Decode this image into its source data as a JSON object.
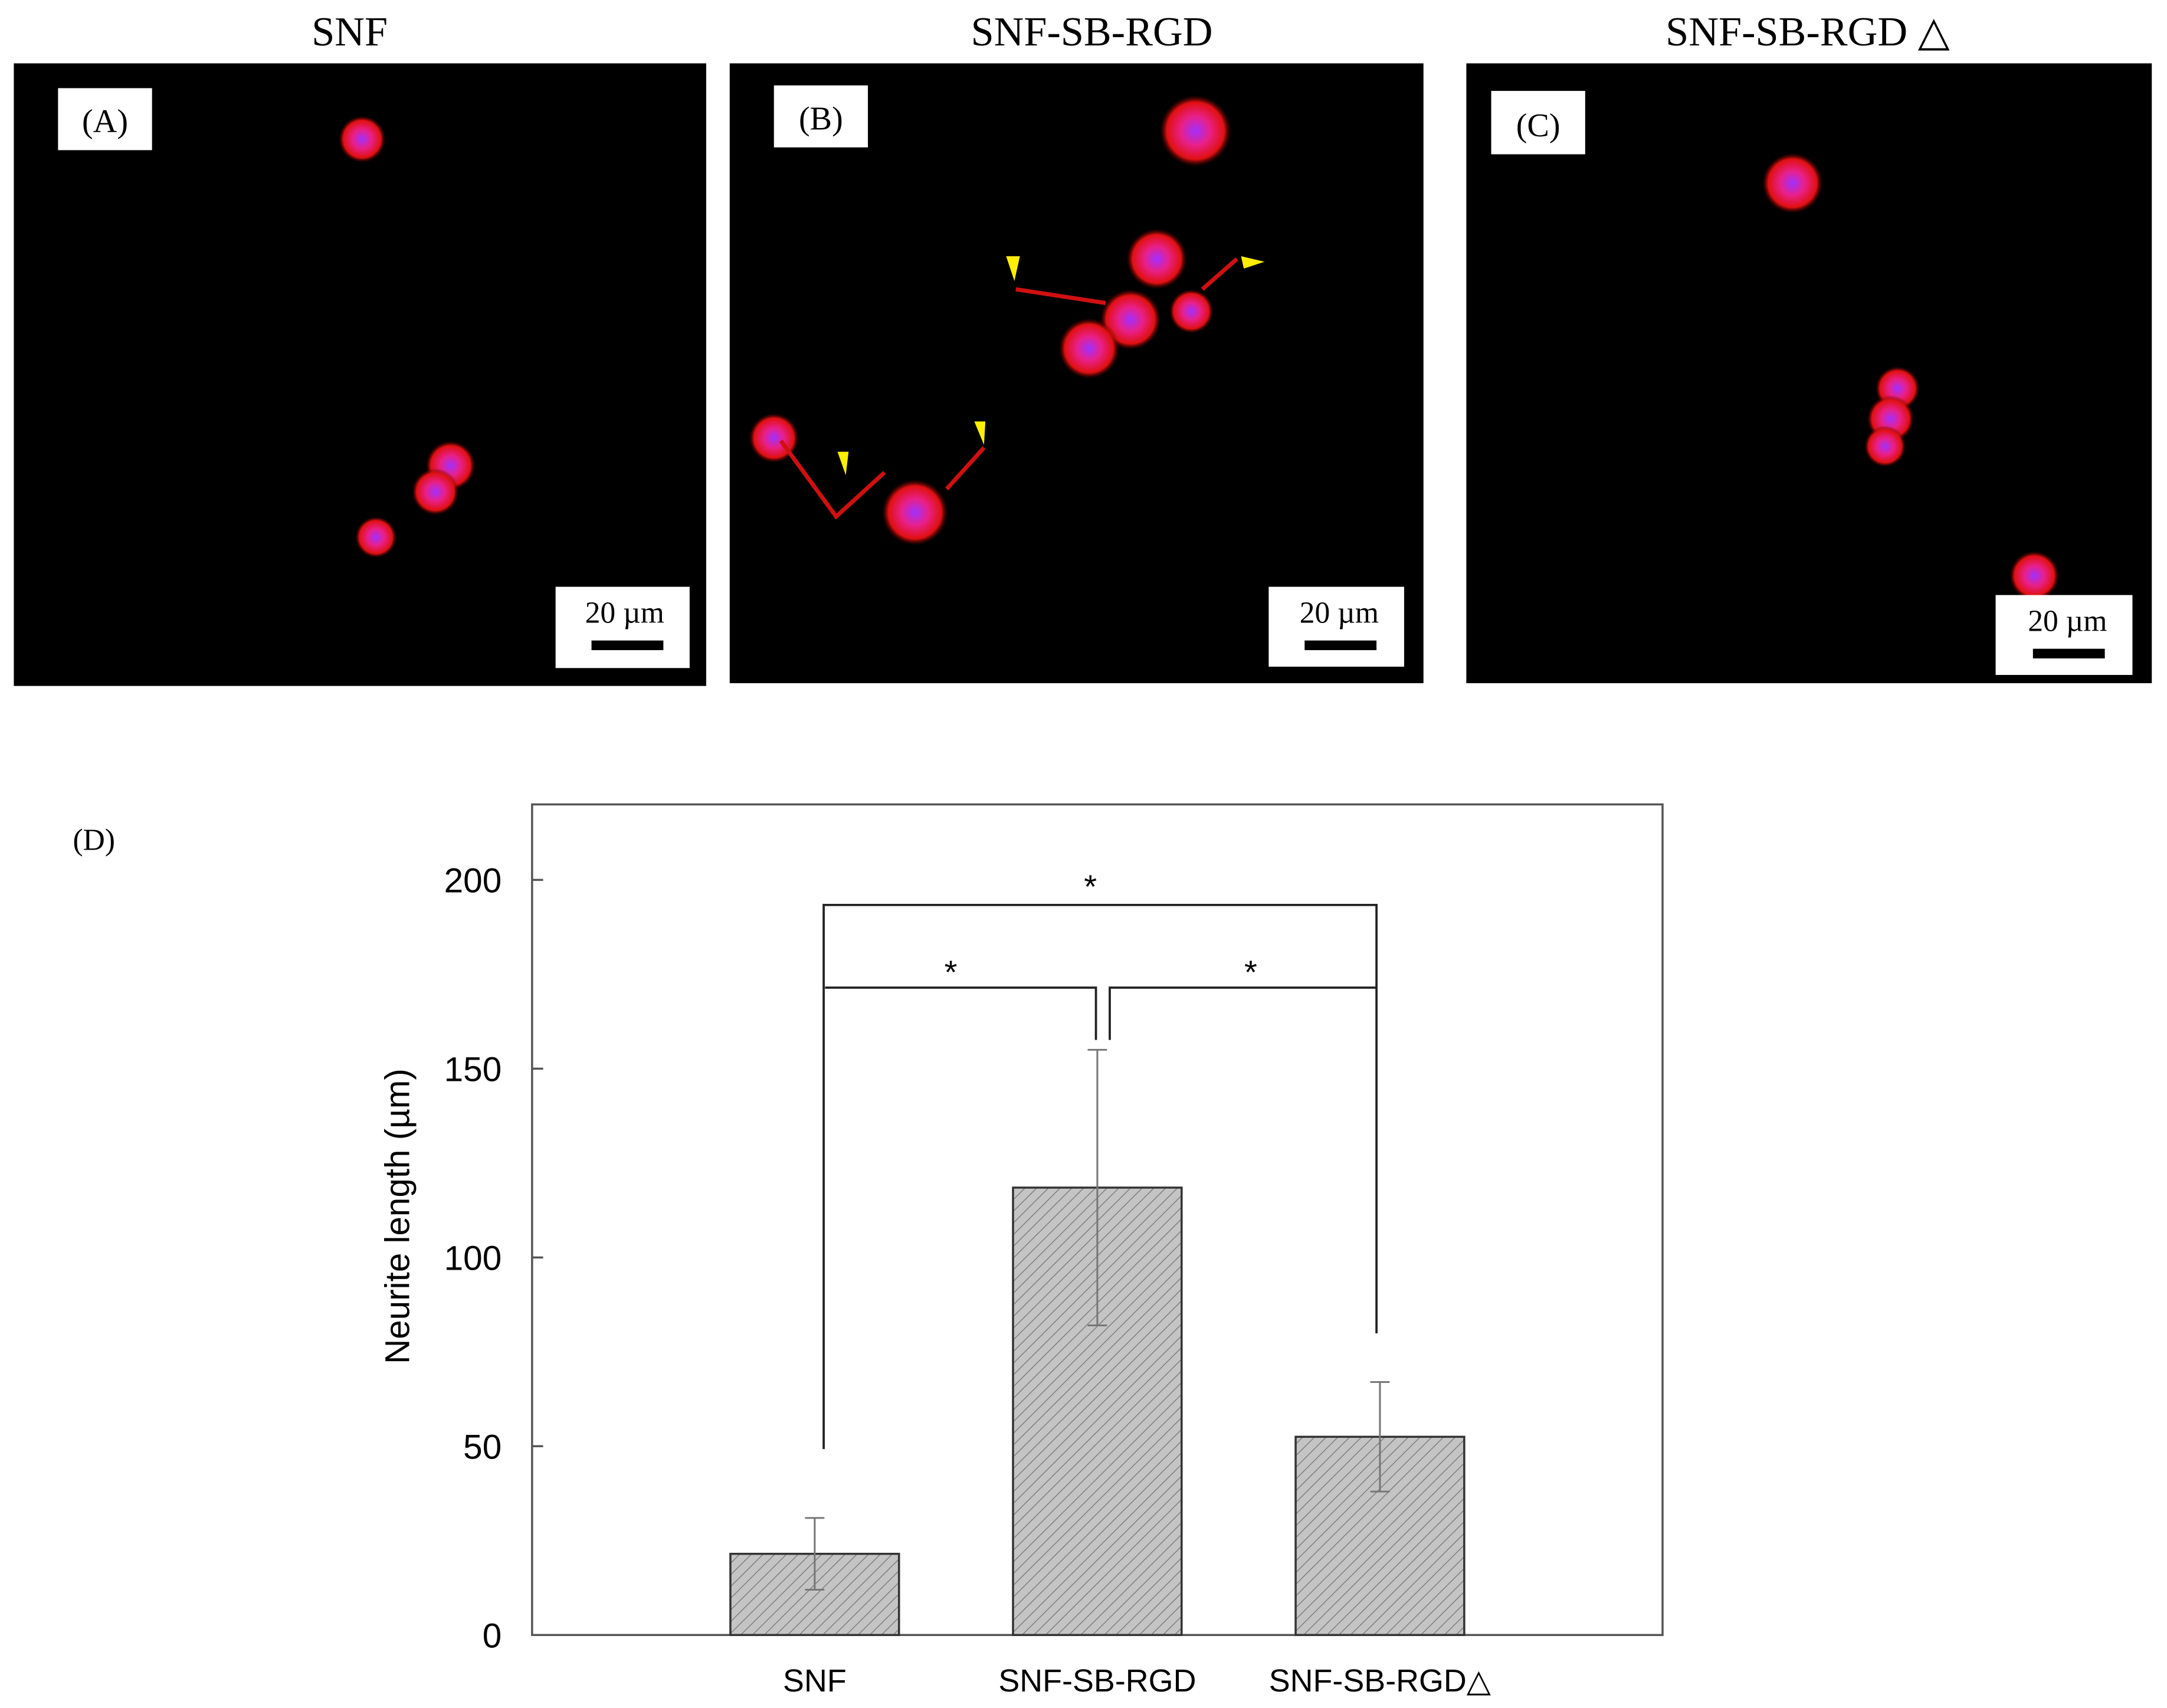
{
  "panels": [
    {
      "title": "SNF",
      "label": "(A)",
      "scale_bar": "20 µm"
    },
    {
      "title": "SNF-SB-RGD",
      "label": "(B)",
      "scale_bar": "20 µm"
    },
    {
      "title": "SNF-SB-RGD △",
      "label": "(C)",
      "scale_bar": "20 µm"
    }
  ],
  "chart_data": {
    "type": "bar",
    "panel_label": "(D)",
    "y_label": "Neurite length (µm)",
    "categories": [
      "SNF",
      "SNF-SB-RGD",
      "SNF-SB-RGD△"
    ],
    "values": [
      21.5,
      118.5,
      52.5
    ],
    "errors": [
      9.5,
      36.5,
      14.5
    ],
    "color": "#c0c0c0",
    "ylim": [
      0,
      220
    ],
    "yticks": [
      0,
      50,
      100,
      150,
      200
    ],
    "annotations": [
      "*",
      "*",
      "*"
    ]
  }
}
